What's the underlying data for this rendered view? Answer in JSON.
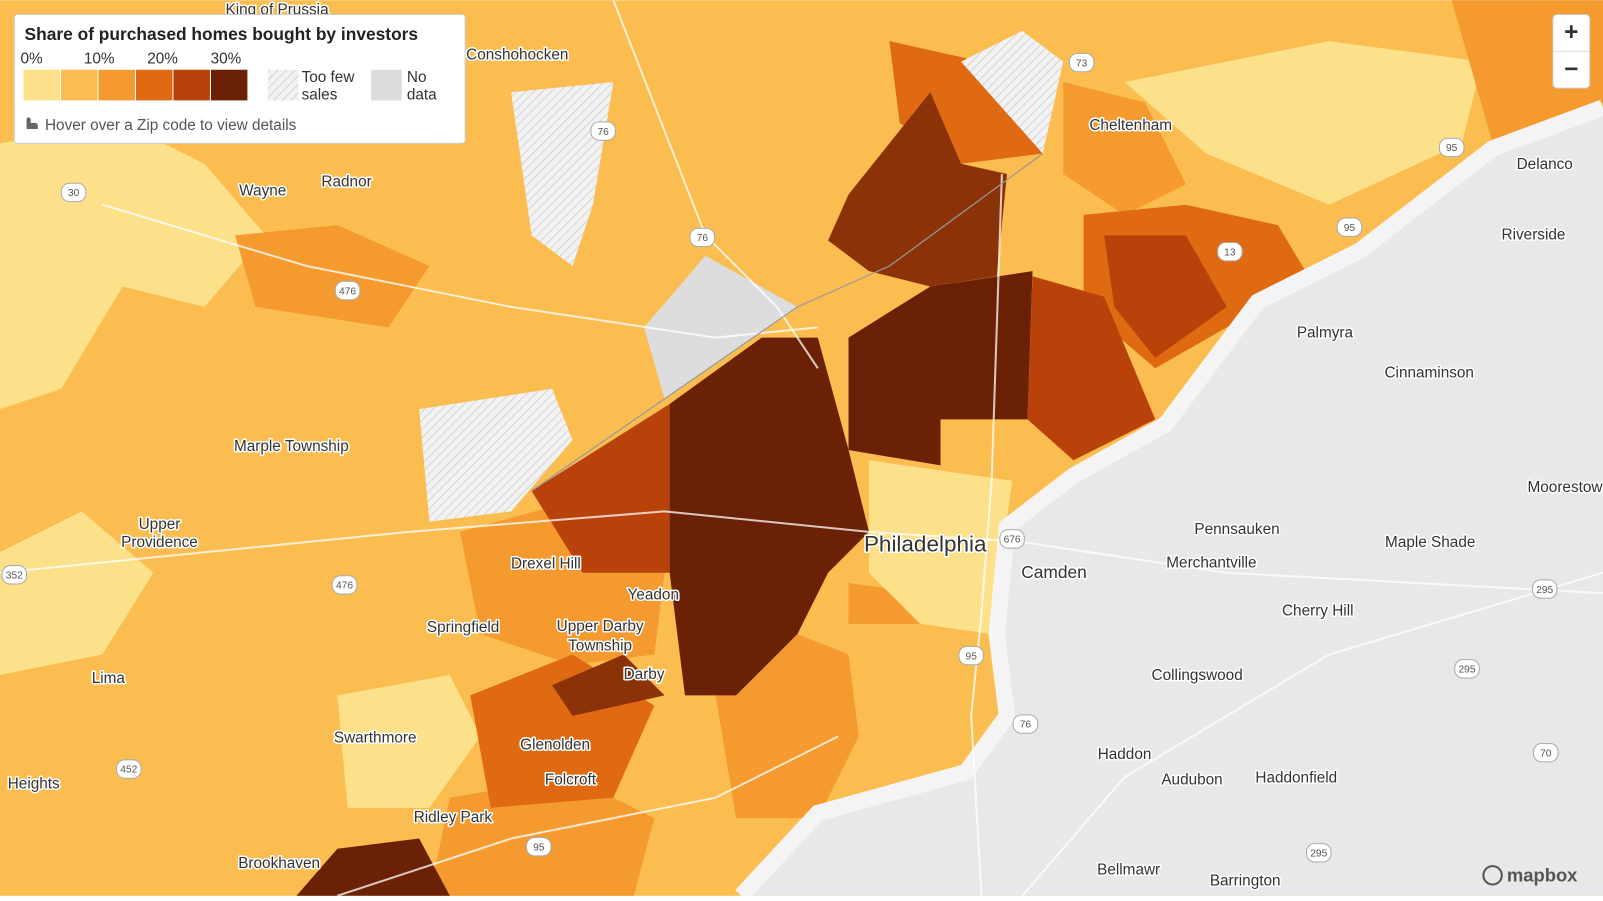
{
  "legend": {
    "title": "Share of purchased homes bought by investors",
    "ticks": [
      "0%",
      "10%",
      "20%",
      "30%"
    ],
    "colors": [
      "#fde08a",
      "#fbbd4f",
      "#f49a2e",
      "#e06a12",
      "#b8420a",
      "#6b2106"
    ],
    "too_few": [
      "Too few",
      "sales"
    ],
    "no_data": [
      "No",
      "data"
    ],
    "hint": "Hover over a Zip code to view details"
  },
  "places": [
    "King of Prussia",
    "Conshohocken",
    "Wayne",
    "Radnor",
    "Cheltenham",
    "Delanco",
    "Riverside",
    "Palmyra",
    "Cinnaminson",
    "Marple Township",
    "Moorestown",
    [
      "Upper",
      "Providence"
    ],
    "Pennsauken",
    "Merchantville",
    "Philadelphia",
    "Camden",
    "Maple Shade",
    "Drexel Hill",
    "Yeadon",
    "Springfield",
    [
      "Upper Darby",
      "Township"
    ],
    "Cherry Hill",
    "Darby",
    "Collingswood",
    "Lima",
    "Swarthmore",
    "Glenolden",
    "Haddon",
    "Audubon",
    "Haddonfield",
    "Heights",
    "Folcroft",
    "Ridley Park",
    "Brookhaven",
    "Bellmawr",
    "Barrington"
  ],
  "highways": [
    "76",
    "76",
    "476",
    "476",
    "95",
    "95",
    "95",
    "95",
    "676",
    "76",
    "295",
    "295",
    "295",
    "13",
    "30",
    "352",
    "452",
    "70",
    "73"
  ],
  "controls": {
    "zoom_in": "+",
    "zoom_out": "−"
  },
  "attribution": "mapbox"
}
